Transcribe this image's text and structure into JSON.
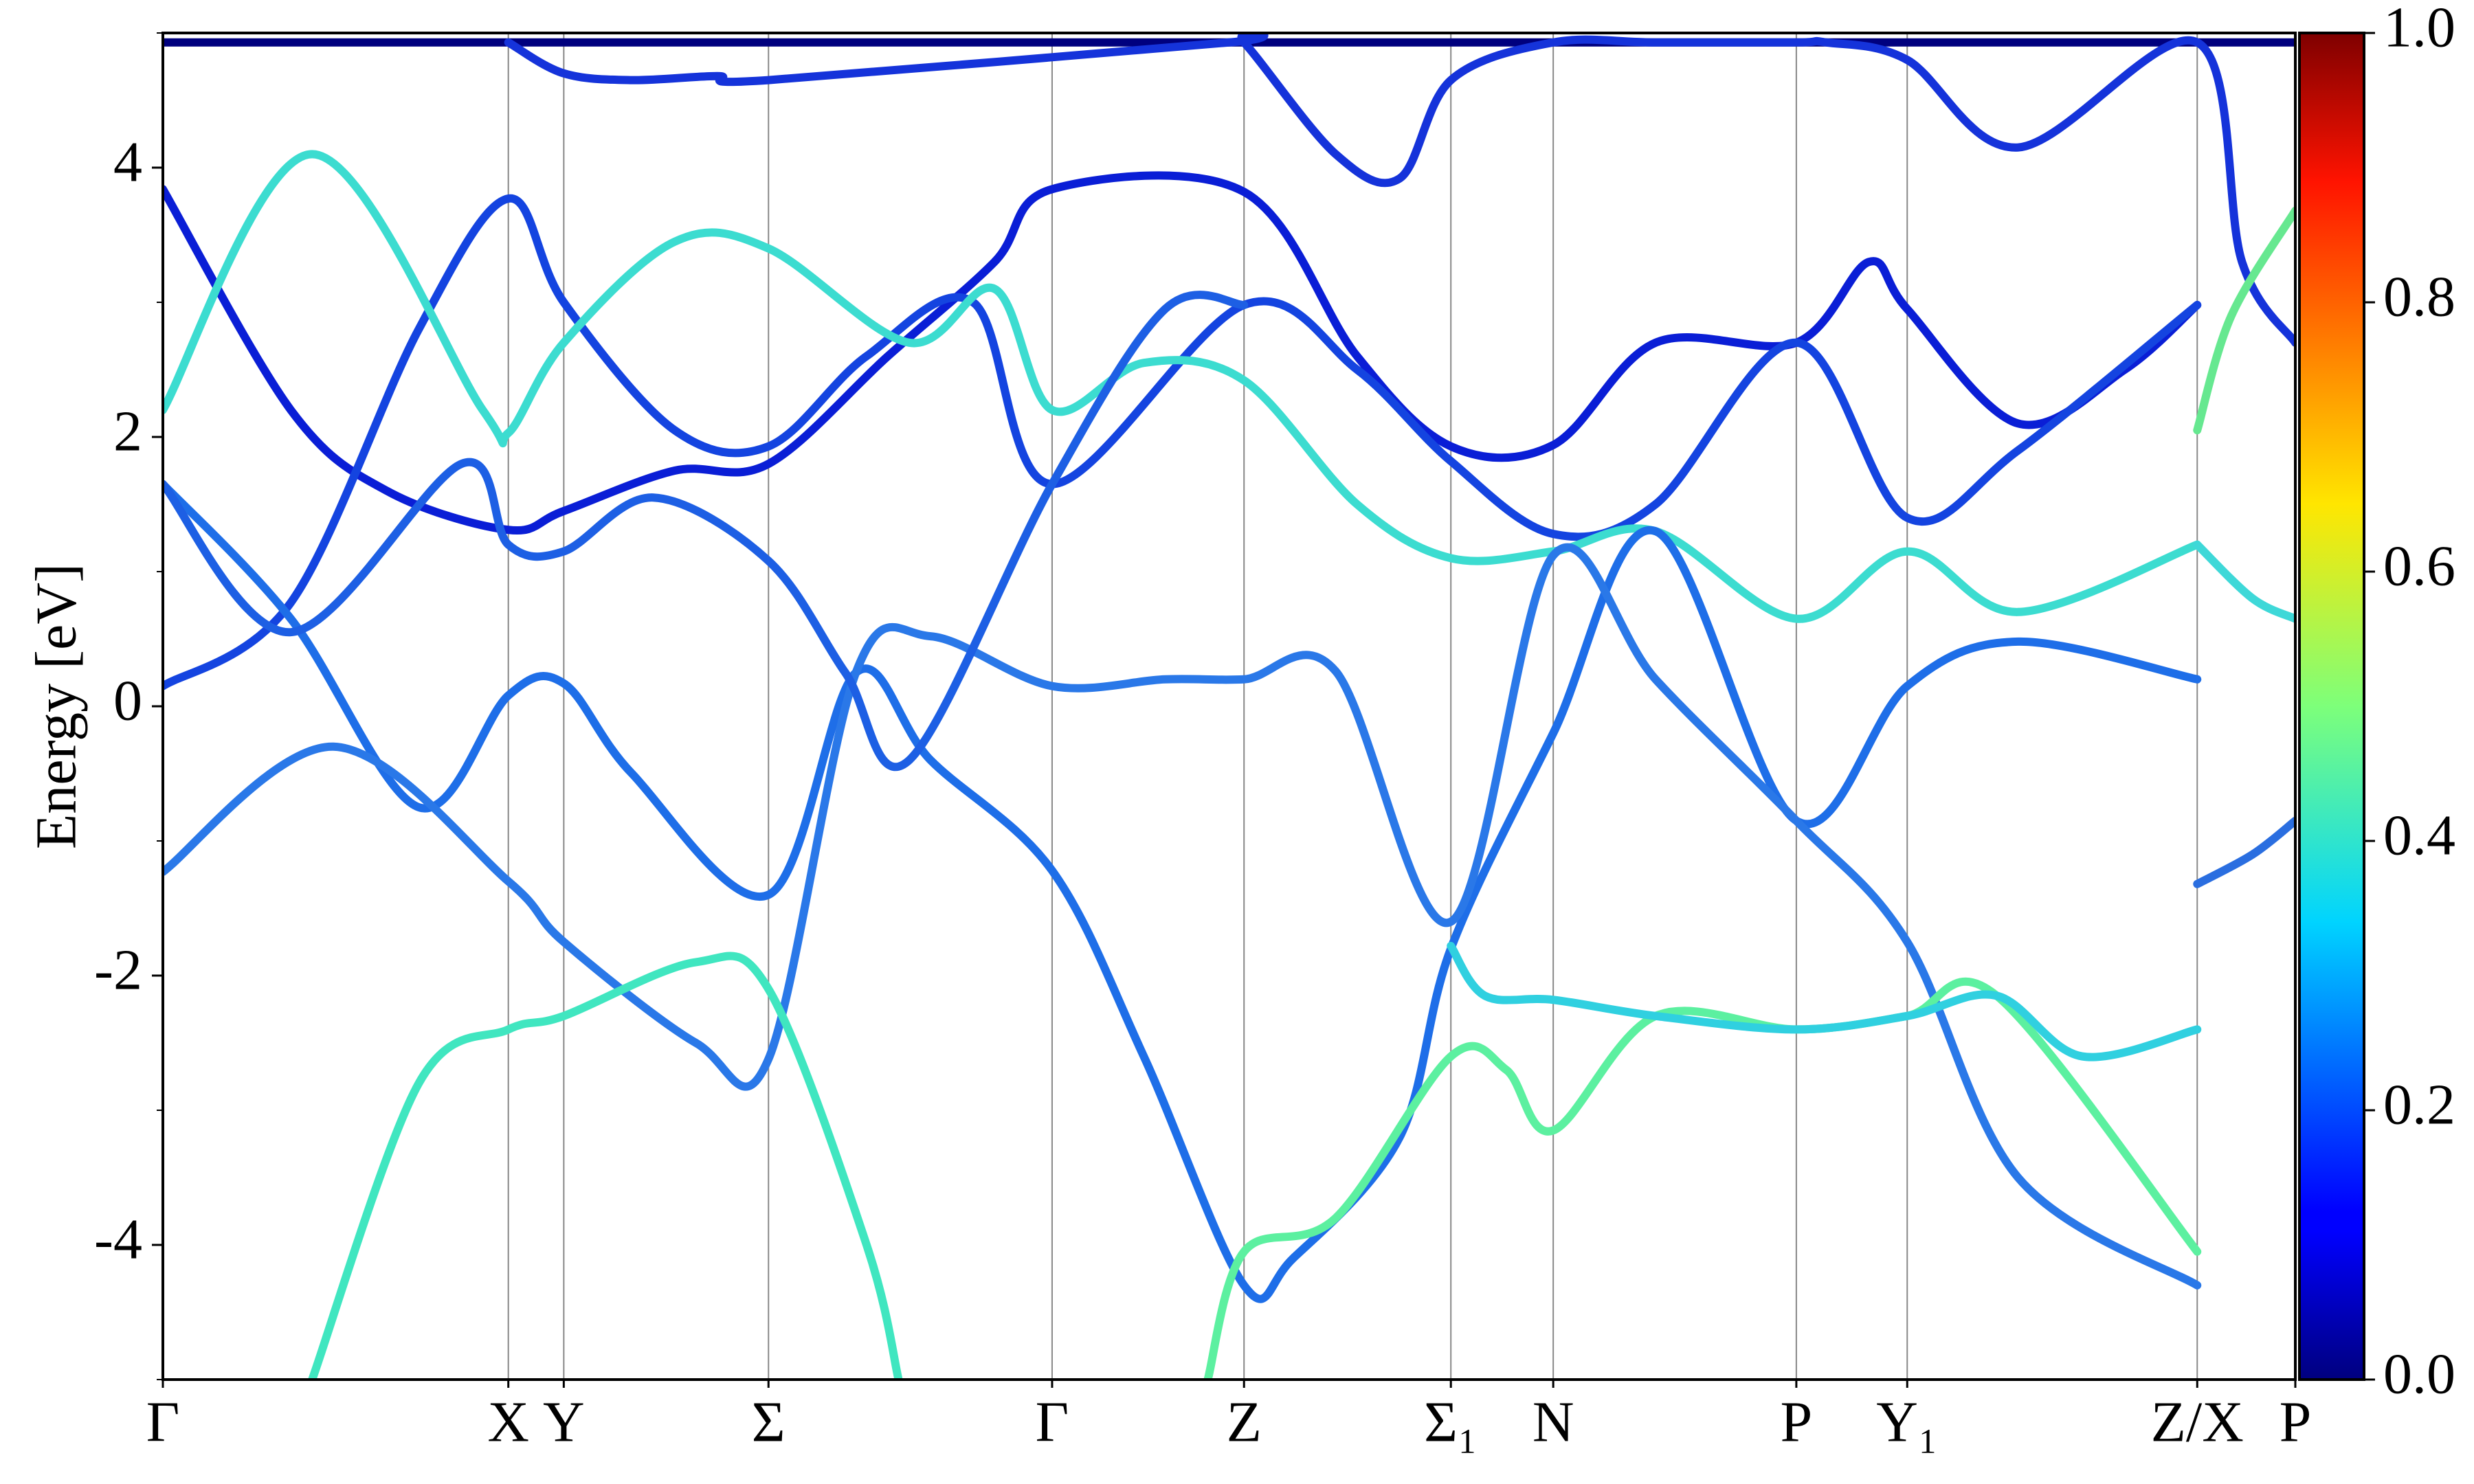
{
  "chart_data": {
    "type": "line",
    "ylabel": "Energy [eV]",
    "xlim": [
      0,
      1
    ],
    "ylim": [
      -5,
      5
    ],
    "xticks": [
      {
        "value": 0,
        "label": "Γ"
      },
      {
        "value": 0.162,
        "label": "X"
      },
      {
        "value": 0.188,
        "label": "Y"
      },
      {
        "value": 0.284,
        "label": "Σ"
      },
      {
        "value": 0.417,
        "label": "Γ"
      },
      {
        "value": 0.507,
        "label": "Z"
      },
      {
        "value": 0.604,
        "label": "Σ₁"
      },
      {
        "value": 0.652,
        "label": "N"
      },
      {
        "value": 0.766,
        "label": "P"
      },
      {
        "value": 0.818,
        "label": "Y₁"
      },
      {
        "value": 0.954,
        "label": "Z/X"
      },
      {
        "value": 1,
        "label": "P"
      }
    ],
    "yticks": [
      -4,
      -2,
      0,
      2,
      4
    ],
    "yminorticks": [
      -5,
      -3,
      -1,
      1,
      3,
      5
    ],
    "grid": true,
    "colorbar": {
      "lim": [
        0,
        1
      ],
      "ticks": [
        {
          "value": 0,
          "label": "0.0"
        },
        0.2,
        0.4,
        0.6,
        0.8,
        {
          "value": 1,
          "label": "1.0"
        }
      ],
      "colormap": "jet"
    },
    "series": [
      {
        "color": "#00007e",
        "x": [
          0,
          0.5,
          1
        ],
        "values": [
          4.93,
          4.93,
          4.93
        ]
      },
      {
        "color": "#0a1ed6",
        "x": [
          0,
          0.06,
          0.105,
          0.162,
          0.188,
          0.24,
          0.284,
          0.34,
          0.39,
          0.417,
          0.507,
          0.56,
          0.604,
          0.652,
          0.7,
          0.766,
          0.8,
          0.818,
          0.87,
          0.92,
          0.954
        ],
        "values": [
          3.84,
          2.2,
          1.6,
          1.31,
          1.45,
          1.75,
          1.8,
          2.6,
          3.3,
          3.84,
          3.82,
          2.6,
          1.93,
          1.94,
          2.7,
          2.7,
          3.3,
          2.95,
          2.1,
          2.5,
          2.98
        ]
      },
      {
        "color": "#1444e0",
        "x": [
          0,
          0.06,
          0.12,
          0.162,
          0.188,
          0.24,
          0.284,
          0.33,
          0.38,
          0.417,
          0.507,
          0.56,
          0.604,
          0.652,
          0.7,
          0.766,
          0.818,
          0.87,
          0.954
        ],
        "values": [
          0.15,
          0.77,
          2.8,
          3.77,
          3.0,
          2.05,
          1.93,
          2.6,
          3.0,
          1.65,
          2.98,
          2.5,
          1.82,
          1.28,
          1.5,
          2.7,
          1.4,
          1.9,
          2.98
        ]
      },
      {
        "color": "#3cdcd0",
        "x": [
          0,
          0.07,
          0.15,
          0.162,
          0.188,
          0.24,
          0.284,
          0.35,
          0.39,
          0.417,
          0.46,
          0.507,
          0.56,
          0.604,
          0.652,
          0.7,
          0.766,
          0.818,
          0.87,
          0.954
        ],
        "values": [
          2.2,
          4.1,
          2.2,
          2.03,
          2.7,
          3.45,
          3.4,
          2.7,
          3.1,
          2.2,
          2.55,
          2.42,
          1.5,
          1.1,
          1.15,
          1.3,
          0.65,
          1.15,
          0.7,
          1.2
        ]
      },
      {
        "color": "#1e6ee8",
        "x": [
          0,
          0.06,
          0.12,
          0.162,
          0.188,
          0.22,
          0.284,
          0.325,
          0.36,
          0.417,
          0.46,
          0.507,
          0.53,
          0.58,
          0.604,
          0.652,
          0.7,
          0.766,
          0.818,
          0.87,
          0.954
        ],
        "values": [
          1.65,
          0.65,
          -0.75,
          0.08,
          0.17,
          -0.5,
          -1.4,
          0.25,
          -0.4,
          -1.22,
          -2.6,
          -4.3,
          -4.1,
          -3.2,
          -1.8,
          -0.2,
          1.3,
          -0.85,
          0.15,
          0.48,
          0.2
        ]
      },
      {
        "color": "#2a78e8",
        "x": [
          0,
          0.08,
          0.162,
          0.188,
          0.25,
          0.284,
          0.325,
          0.36,
          0.417,
          0.47,
          0.507,
          0.55,
          0.604,
          0.652,
          0.7,
          0.766,
          0.818,
          0.87,
          0.954
        ],
        "values": [
          -1.23,
          -0.3,
          -1.3,
          -1.75,
          -2.5,
          -2.62,
          0.25,
          0.52,
          0.15,
          0.2,
          0.2,
          0.26,
          -1.6,
          1.12,
          0.2,
          -0.85,
          -1.75,
          -3.5,
          -4.3
        ]
      },
      {
        "color": "#40e6c0",
        "x": [
          0.07,
          0.12,
          0.162,
          0.188,
          0.25,
          0.284,
          0.33,
          0.345
        ],
        "values": [
          -5,
          -2.8,
          -2.4,
          -2.3,
          -1.9,
          -2.1,
          -4,
          -5
        ]
      },
      {
        "color": "#5cf0a0",
        "x": [
          0.49,
          0.507,
          0.55,
          0.604,
          0.63,
          0.652,
          0.7,
          0.766,
          0.818,
          0.86,
          0.954
        ],
        "values": [
          -5,
          -4.05,
          -3.8,
          -2.6,
          -2.7,
          -3.15,
          -2.3,
          -2.4,
          -2.3,
          -2.15,
          -4.05
        ]
      },
      {
        "color": "#30d0e0",
        "x": [
          0.604,
          0.62,
          0.652,
          0.7,
          0.766,
          0.818,
          0.86,
          0.9,
          0.954
        ],
        "values": [
          -1.78,
          -2.15,
          -2.18,
          -2.3,
          -2.4,
          -2.3,
          -2.15,
          -2.6,
          -2.4
        ]
      },
      {
        "color": "#1d5fe4",
        "x": [
          0,
          0.06,
          0.14,
          0.162,
          0.188,
          0.23,
          0.284,
          0.32,
          0.35,
          0.417,
          0.47,
          0.507
        ],
        "values": [
          1.65,
          0.55,
          1.8,
          1.2,
          1.15,
          1.55,
          1.08,
          0.25,
          -0.4,
          1.65,
          2.95,
          2.98
        ]
      },
      {
        "color": "#1533da",
        "x": [
          0.162,
          0.188,
          0.22,
          0.26,
          0.284,
          0.5,
          0.507,
          0.55,
          0.58,
          0.604,
          0.652,
          0.7,
          0.766,
          0.78,
          0.818,
          0.87,
          0.954,
          0.975,
          1
        ],
        "values": [
          4.93,
          4.7,
          4.65,
          4.68,
          4.65,
          4.93,
          4.93,
          4.1,
          3.92,
          4.65,
          4.93,
          4.93,
          4.93,
          4.93,
          4.8,
          4.15,
          4.93,
          3.3,
          2.7
        ]
      },
      {
        "color": "#66e890",
        "x": [
          0.954,
          0.97,
          1
        ],
        "values": [
          2.05,
          2.9,
          3.68
        ]
      },
      {
        "color": "#3ed8d8",
        "x": [
          0.954,
          0.98,
          1
        ],
        "values": [
          1.2,
          0.8,
          0.65
        ]
      },
      {
        "color": "#2a6ee0",
        "x": [
          0.954,
          0.98,
          1
        ],
        "values": [
          -1.32,
          -1.1,
          -0.85
        ]
      }
    ]
  }
}
